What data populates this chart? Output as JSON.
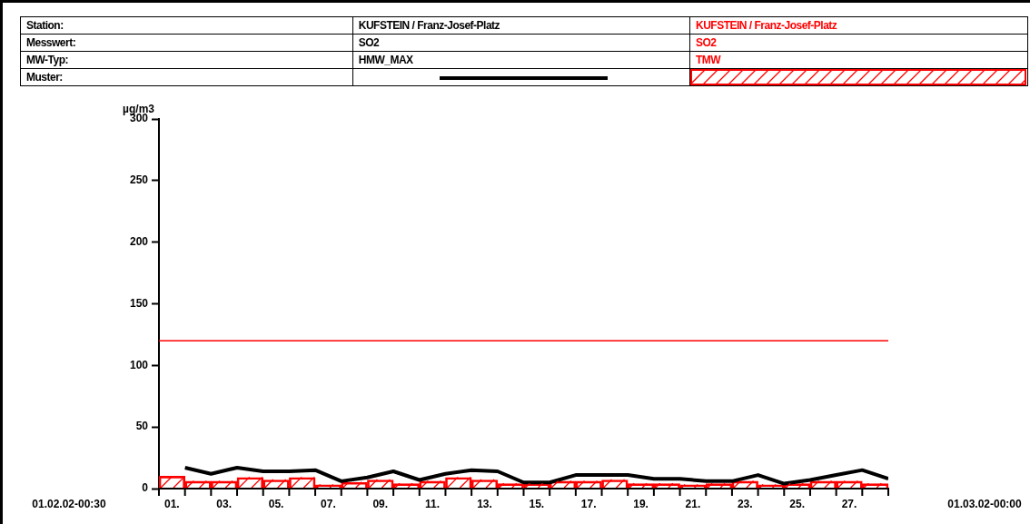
{
  "chart_data": {
    "type": "bar",
    "ylabel": "µg/m3",
    "legend": "top",
    "annotations": [
      "Station:",
      "KUFSTEIN / Franz-Josef-Platz",
      "Messwert:",
      "SO2",
      "MW-Typ:",
      "Muster:",
      "01.02.02-00:30",
      "01.03.02-00:00"
    ],
    "xlim": [
      0,
      28
    ],
    "xticks": [
      {
        "value": 0,
        "label": null
      },
      {
        "value": 0.5,
        "label": "01."
      },
      {
        "value": 1,
        "label": null
      },
      {
        "value": 2,
        "label": null
      },
      {
        "value": 2.5,
        "label": "03."
      },
      {
        "value": 3,
        "label": null
      },
      {
        "value": 4,
        "label": null
      },
      {
        "value": 4.5,
        "label": "05."
      },
      {
        "value": 5,
        "label": null
      },
      {
        "value": 6,
        "label": null
      },
      {
        "value": 6.5,
        "label": "07."
      },
      {
        "value": 7,
        "label": null
      },
      {
        "value": 8,
        "label": null
      },
      {
        "value": 8.5,
        "label": "09."
      },
      {
        "value": 9,
        "label": null
      },
      {
        "value": 10,
        "label": null
      },
      {
        "value": 10.5,
        "label": "11."
      },
      {
        "value": 11,
        "label": null
      },
      {
        "value": 12,
        "label": null
      },
      {
        "value": 12.5,
        "label": "13."
      },
      {
        "value": 13,
        "label": null
      },
      {
        "value": 14,
        "label": null
      },
      {
        "value": 14.5,
        "label": "15."
      },
      {
        "value": 15,
        "label": null
      },
      {
        "value": 16,
        "label": null
      },
      {
        "value": 16.5,
        "label": "17."
      },
      {
        "value": 17,
        "label": null
      },
      {
        "value": 18,
        "label": null
      },
      {
        "value": 18.5,
        "label": "19."
      },
      {
        "value": 19,
        "label": null
      },
      {
        "value": 20,
        "label": null
      },
      {
        "value": 20.5,
        "label": "21."
      },
      {
        "value": 21,
        "label": null
      },
      {
        "value": 22,
        "label": null
      },
      {
        "value": 22.5,
        "label": "23."
      },
      {
        "value": 23,
        "label": null
      },
      {
        "value": 24,
        "label": null
      },
      {
        "value": 24.5,
        "label": "25."
      },
      {
        "value": 25,
        "label": null
      },
      {
        "value": 26,
        "label": null
      },
      {
        "value": 26.5,
        "label": "27."
      },
      {
        "value": 27,
        "label": null
      },
      {
        "value": 28,
        "label": null
      }
    ],
    "ylim": [
      0,
      300
    ],
    "yticks": [
      0,
      50,
      100,
      150,
      200,
      250,
      300
    ],
    "grid": false,
    "ref_lines": [
      {
        "axis": "y",
        "value": 120,
        "color": "#ff0000"
      }
    ],
    "series": [
      {
        "name": "HMW_MAX",
        "type": "line",
        "color": "#000000",
        "marker": "none",
        "x": [
          1,
          2,
          3,
          4,
          5,
          6,
          7,
          8,
          9,
          10,
          11,
          12,
          13,
          14,
          15,
          16,
          17,
          18,
          19,
          20,
          21,
          22,
          23,
          24,
          25,
          26,
          27,
          28
        ],
        "values": [
          17,
          12,
          17,
          14,
          14,
          15,
          6,
          9,
          14,
          7,
          12,
          15,
          14,
          5,
          5,
          11,
          11,
          11,
          8,
          8,
          6,
          6,
          11,
          4,
          7,
          11,
          15,
          8
        ]
      },
      {
        "name": "TMW",
        "color": "#ff0000",
        "x": [
          0.5,
          1.5,
          2.5,
          3.5,
          4.5,
          5.5,
          6.5,
          7.5,
          8.5,
          9.5,
          10.5,
          11.5,
          12.5,
          13.5,
          14.5,
          15.5,
          16.5,
          17.5,
          18.5,
          19.5,
          20.5,
          21.5,
          22.5,
          23.5,
          24.5,
          25.5,
          26.5,
          27.5
        ],
        "values": [
          10,
          6,
          6,
          9,
          7,
          9,
          3,
          5,
          7,
          4,
          6,
          9,
          7,
          4,
          4,
          6,
          6,
          7,
          4,
          4,
          3,
          4,
          6,
          3,
          4,
          6,
          6,
          4
        ]
      }
    ]
  }
}
